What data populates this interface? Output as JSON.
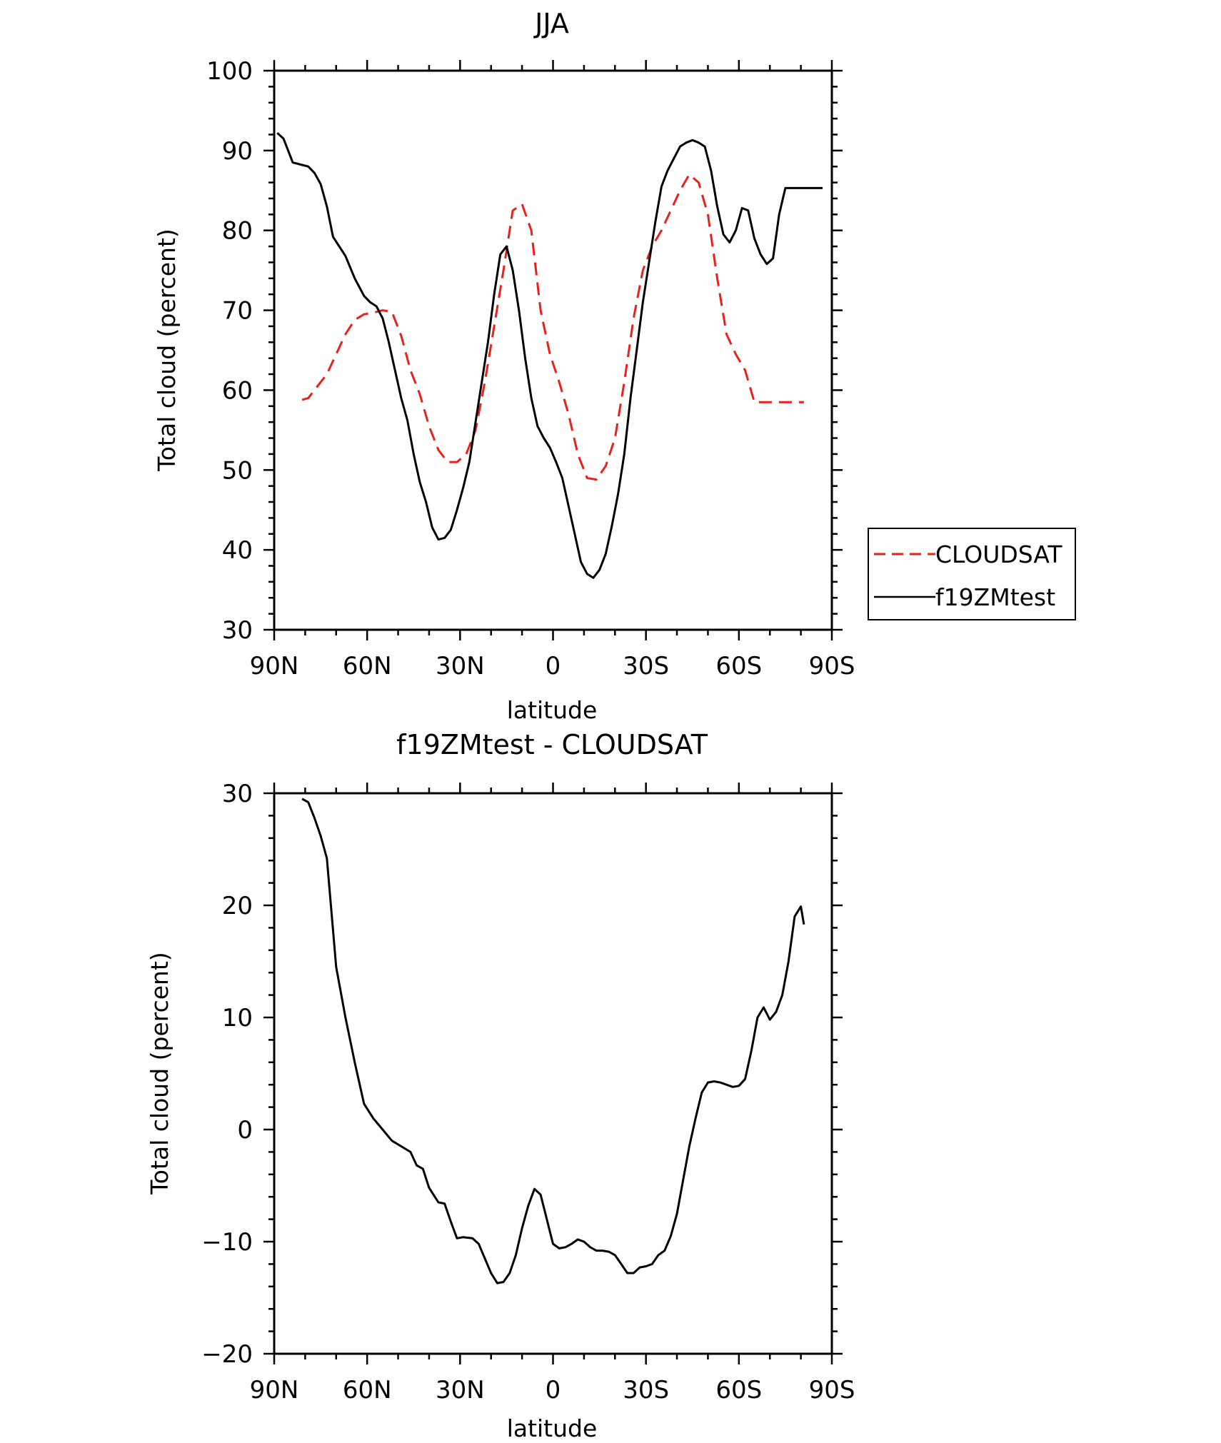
{
  "chart_data": [
    {
      "type": "line",
      "title": "JJA",
      "xlabel": "latitude",
      "ylabel": "Total cloud (percent)",
      "xlim": [
        90,
        -90
      ],
      "ylim": [
        30,
        100
      ],
      "x_ticks": [
        {
          "value": 90,
          "label": "90N"
        },
        {
          "value": 60,
          "label": "60N"
        },
        {
          "value": 30,
          "label": "30N"
        },
        {
          "value": 0,
          "label": "0"
        },
        {
          "value": -30,
          "label": "30S"
        },
        {
          "value": -60,
          "label": "60S"
        },
        {
          "value": -90,
          "label": "90S"
        }
      ],
      "y_ticks": [
        {
          "value": 100,
          "label": "100"
        },
        {
          "value": 90,
          "label": "90"
        },
        {
          "value": 80,
          "label": "80"
        },
        {
          "value": 70,
          "label": "70"
        },
        {
          "value": 60,
          "label": "60"
        },
        {
          "value": 50,
          "label": "50"
        },
        {
          "value": 40,
          "label": "40"
        },
        {
          "value": 30,
          "label": "30"
        }
      ],
      "grid": false,
      "legend": {
        "placement": "right"
      },
      "series": [
        {
          "name": "CLOUDSAT",
          "color": "#e8221a",
          "dash": "dashed",
          "x": [
            81,
            79,
            76,
            73,
            70,
            67,
            64,
            61,
            58,
            55,
            52,
            49,
            46,
            43,
            40,
            37,
            34,
            31,
            28,
            25,
            22,
            19,
            16,
            13,
            10,
            7,
            4,
            1,
            -2,
            -5,
            -8,
            -11,
            -14,
            -17,
            -20,
            -23,
            -26,
            -29,
            -32,
            -35,
            -38,
            -41,
            -44,
            -47,
            -50,
            -53,
            -56,
            -59,
            -62,
            -65,
            -68,
            -71,
            -74,
            -77,
            -80,
            -81
          ],
          "y": [
            58.8,
            59,
            60.5,
            62,
            64.5,
            67,
            68.8,
            69.5,
            69.7,
            70,
            69.8,
            66.8,
            62.5,
            59.5,
            55.5,
            52.5,
            51,
            51,
            52,
            55,
            61,
            68,
            75,
            82.5,
            83.3,
            80,
            70,
            64.5,
            61,
            57,
            52,
            49,
            48.8,
            50.5,
            54,
            61,
            69,
            75,
            78,
            80,
            82.5,
            85,
            87,
            86,
            82,
            74,
            67,
            64.5,
            62.5,
            58.5,
            58.5,
            58.5,
            58.5,
            58.5,
            58.5,
            58.5
          ]
        },
        {
          "name": "f19ZMtest",
          "color": "#000000",
          "dash": "solid",
          "x": [
            89,
            87,
            84,
            81,
            79,
            77,
            75,
            73,
            71,
            67,
            64,
            61,
            59,
            57,
            55,
            53,
            51,
            49,
            47,
            45,
            43,
            41,
            39,
            37,
            35,
            33,
            31,
            29,
            27,
            25,
            23,
            21,
            19,
            17,
            15,
            13,
            11,
            9,
            7,
            5,
            3,
            1,
            -1,
            -3,
            -5,
            -7,
            -9,
            -11,
            -13,
            -15,
            -17,
            -19,
            -21,
            -23,
            -25,
            -27,
            -29,
            -31,
            -33,
            -35,
            -37,
            -39,
            -41,
            -43,
            -45,
            -47,
            -49,
            -51,
            -53,
            -55,
            -57,
            -59,
            -61,
            -63,
            -65,
            -67,
            -69,
            -71,
            -73,
            -75,
            -77,
            -79,
            -81,
            -83,
            -85,
            -87
          ],
          "y": [
            92.2,
            91.5,
            88.5,
            88.2,
            88,
            87.2,
            85.8,
            83,
            79.2,
            76.8,
            74,
            71.8,
            71,
            70.5,
            69,
            66,
            62.5,
            59,
            56.2,
            52,
            48.5,
            46,
            42.8,
            41.3,
            41.5,
            42.5,
            45,
            47.8,
            51,
            56,
            61,
            66,
            72,
            77,
            78,
            75,
            70,
            64,
            59,
            55.5,
            54,
            52.8,
            51,
            49,
            45.5,
            42,
            38.5,
            37,
            36.5,
            37.5,
            39.5,
            43,
            47,
            52,
            59,
            65,
            71,
            76,
            81,
            85.5,
            87.5,
            89,
            90.5,
            91,
            91.3,
            91,
            90.5,
            87.5,
            83,
            79.5,
            78.5,
            80,
            82.8,
            82.5,
            79,
            77,
            75.8,
            76.5,
            82,
            85.3,
            85.3,
            85.3,
            85.3,
            85.3,
            85.3,
            85.3
          ]
        }
      ]
    },
    {
      "type": "line",
      "title": "f19ZMtest - CLOUDSAT",
      "xlabel": "latitude",
      "ylabel": "Total cloud (percent)",
      "xlim": [
        90,
        -90
      ],
      "ylim": [
        -20,
        30
      ],
      "x_ticks": [
        {
          "value": 90,
          "label": "90N"
        },
        {
          "value": 60,
          "label": "60N"
        },
        {
          "value": 30,
          "label": "30N"
        },
        {
          "value": 0,
          "label": "0"
        },
        {
          "value": -30,
          "label": "30S"
        },
        {
          "value": -60,
          "label": "60S"
        },
        {
          "value": -90,
          "label": "90S"
        }
      ],
      "y_ticks": [
        {
          "value": 30,
          "label": "30"
        },
        {
          "value": 20,
          "label": "20"
        },
        {
          "value": 10,
          "label": "10"
        },
        {
          "value": 0,
          "label": "0"
        },
        {
          "value": -10,
          "label": "−10"
        },
        {
          "value": -20,
          "label": "−20"
        }
      ],
      "grid": false,
      "series": [
        {
          "color": "#000000",
          "dash": "solid",
          "x": [
            81,
            79,
            77,
            75,
            73,
            70,
            67,
            64,
            61,
            58,
            55,
            52,
            49,
            46,
            44,
            42,
            40,
            37,
            35,
            33,
            31,
            29,
            26,
            24,
            22,
            20,
            18,
            16,
            14,
            12,
            10,
            8,
            6,
            4,
            2,
            0,
            -2,
            -4,
            -6,
            -8,
            -10,
            -12,
            -14,
            -16,
            -18,
            -20,
            -22,
            -24,
            -26,
            -28,
            -30,
            -32,
            -34,
            -36,
            -38,
            -40,
            -42,
            -44,
            -46,
            -48,
            -50,
            -52,
            -54,
            -56,
            -58,
            -60,
            -62,
            -64,
            -66,
            -68,
            -70,
            -72,
            -74,
            -76,
            -78,
            -80,
            -81
          ],
          "y": [
            29.5,
            29.2,
            27.8,
            26.2,
            24.2,
            14.5,
            10,
            6,
            2.3,
            1,
            0,
            -1,
            -1.5,
            -2,
            -3.2,
            -3.5,
            -5.2,
            -6.5,
            -6.6,
            -8.2,
            -9.7,
            -9.6,
            -9.7,
            -10.2,
            -11.5,
            -12.8,
            -13.7,
            -13.6,
            -12.8,
            -11.2,
            -8.8,
            -6.8,
            -5.3,
            -5.8,
            -8,
            -10.2,
            -10.6,
            -10.5,
            -10.2,
            -9.8,
            -10,
            -10.5,
            -10.8,
            -10.8,
            -10.9,
            -11.2,
            -12,
            -12.8,
            -12.8,
            -12.3,
            -12.2,
            -12,
            -11.2,
            -10.8,
            -9.5,
            -7.5,
            -4.5,
            -1.5,
            1,
            3.3,
            4.2,
            4.3,
            4.2,
            4,
            3.8,
            3.9,
            4.5,
            7,
            10,
            10.9,
            9.8,
            10.5,
            12,
            15,
            19,
            19.9,
            18.3
          ]
        }
      ]
    }
  ]
}
